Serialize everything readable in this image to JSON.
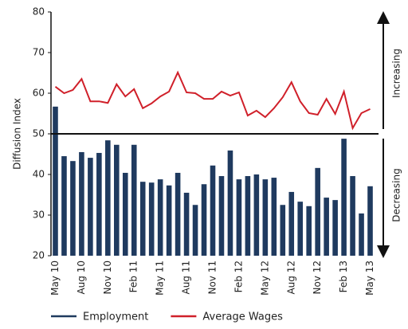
{
  "chart_data": {
    "type": "bar-line",
    "y_label": "Diffusion Index",
    "categories": [
      "May 10",
      null,
      null,
      "Aug 10",
      null,
      null,
      "Nov 10",
      null,
      null,
      "Feb 11",
      null,
      null,
      "May 11",
      null,
      null,
      "Aug 11",
      null,
      null,
      "Nov 11",
      null,
      null,
      "Feb 12",
      null,
      null,
      "May 12",
      null,
      null,
      "Aug 12",
      null,
      null,
      "Nov 12",
      null,
      null,
      "Feb 13",
      null,
      null,
      "May 13"
    ],
    "series": [
      {
        "name": "Employment",
        "type": "bar",
        "color": "#1f3a5f",
        "values": [
          56.7,
          44.5,
          43.3,
          45.5,
          44.1,
          45.3,
          48.4,
          47.3,
          40.4,
          47.3,
          38.2,
          38.0,
          38.8,
          37.3,
          40.4,
          35.5,
          32.5,
          37.6,
          42.2,
          39.6,
          45.9,
          38.8,
          39.6,
          40.0,
          38.8,
          39.2,
          32.5,
          35.7,
          33.3,
          32.2,
          41.6,
          34.3,
          33.7,
          48.8,
          39.6,
          30.4,
          37.1
        ]
      },
      {
        "name": "Average Wages",
        "type": "line",
        "color": "#d0202a",
        "values": [
          61.6,
          60.0,
          60.8,
          63.5,
          58.0,
          58.0,
          57.6,
          62.2,
          59.2,
          61.0,
          56.3,
          57.5,
          59.2,
          60.4,
          65.1,
          60.2,
          60.0,
          58.6,
          58.6,
          60.4,
          59.4,
          60.2,
          54.5,
          55.7,
          54.1,
          56.3,
          59.0,
          62.7,
          58.0,
          55.1,
          54.7,
          58.6,
          54.9,
          60.4,
          51.4,
          55.1,
          56.1
        ]
      }
    ],
    "ylim": [
      20,
      80
    ],
    "yticks": [
      20,
      30,
      40,
      50,
      60,
      70,
      80
    ],
    "reference_line": 50,
    "annotations": [
      "Increasing",
      "Decreasing"
    ]
  }
}
